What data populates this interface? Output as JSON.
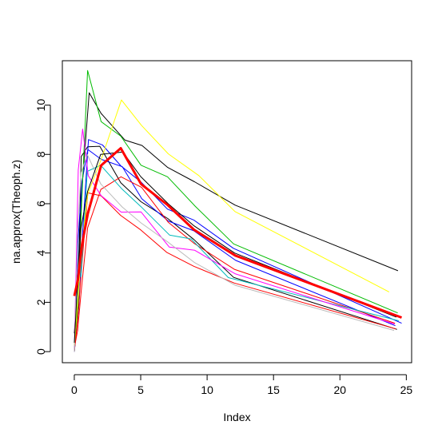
{
  "chart_data": {
    "type": "line",
    "xlabel": "Index",
    "ylabel": "na.approx(Theoph.z)",
    "xlim": [
      -0.9,
      25.4
    ],
    "ylim": [
      -0.45,
      11.8
    ],
    "xticks": [
      0,
      5,
      10,
      15,
      20,
      25
    ],
    "yticks": [
      0,
      2,
      4,
      6,
      8,
      10
    ],
    "grid": false,
    "legend": "none",
    "series": [
      {
        "color": "#000000",
        "width": 1,
        "x": [
          0,
          0.25,
          0.57,
          1.12,
          2.02,
          3.82,
          5.1,
          7.03,
          9.05,
          12.12,
          24.37
        ],
        "y": [
          0.74,
          2.84,
          6.57,
          10.5,
          9.66,
          8.58,
          8.36,
          7.47,
          6.89,
          5.94,
          3.28
        ]
      },
      {
        "color": "#000000",
        "width": 1,
        "x": [
          0,
          0.27,
          0.52,
          1,
          1.92,
          3.5,
          5.02,
          7.03,
          9,
          12,
          24.3
        ],
        "y": [
          0,
          1.72,
          7.91,
          8.31,
          8.33,
          6.85,
          6.08,
          5.4,
          4.55,
          3.01,
          0.9
        ]
      },
      {
        "color": "#0000ff",
        "width": 1,
        "x": [
          0,
          0.27,
          0.58,
          1.02,
          2.02,
          3.62,
          5.08,
          7.07,
          9,
          12.15,
          24.17
        ],
        "y": [
          0,
          4.4,
          6.9,
          8.2,
          7.8,
          7.5,
          6.2,
          5.3,
          4.9,
          3.7,
          1.05
        ]
      },
      {
        "color": "#0000ff",
        "width": 1,
        "x": [
          0,
          0.35,
          0.6,
          1.07,
          2.13,
          3.5,
          5.02,
          7.02,
          9.02,
          11.98,
          24.65
        ],
        "y": [
          0,
          1.89,
          4.6,
          8.6,
          8.38,
          7.54,
          6.88,
          5.78,
          5.33,
          4.19,
          1.15
        ]
      },
      {
        "color": "#00bb00",
        "width": 1,
        "x": [
          0,
          0.3,
          0.52,
          1,
          2.02,
          3.5,
          5.02,
          7.02,
          9.1,
          12,
          24.35
        ],
        "y": [
          0,
          2.02,
          5.63,
          11.4,
          9.33,
          8.74,
          7.56,
          7.09,
          5.9,
          4.37,
          1.57
        ]
      },
      {
        "color": "#ff0000",
        "width": 1,
        "x": [
          0,
          0.25,
          0.5,
          1.02,
          2.02,
          3.48,
          5,
          6.98,
          9,
          12.05,
          24.22
        ],
        "y": [
          0,
          1.29,
          3.08,
          6.44,
          6.32,
          5.53,
          4.94,
          4.02,
          3.46,
          2.78,
          0.92
        ]
      },
      {
        "color": "#ff0000",
        "width": 1,
        "x": [
          0,
          0.25,
          0.5,
          1,
          2,
          3.52,
          5.07,
          7.07,
          9.03,
          12.05,
          24.15
        ],
        "y": [
          0.15,
          0.85,
          2.35,
          5.02,
          6.58,
          7.09,
          6.66,
          5.25,
          4.39,
          3.34,
          1.15
        ]
      },
      {
        "color": "#00bbbb",
        "width": 1,
        "x": [
          0,
          0.25,
          0.5,
          0.98,
          1.98,
          3.6,
          5.02,
          7.17,
          8.8,
          11.6,
          24.43
        ],
        "y": [
          0,
          3.05,
          3.05,
          7.31,
          7.56,
          6.59,
          5.88,
          4.73,
          4.57,
          3,
          1.25
        ]
      },
      {
        "color": "#ff00ff",
        "width": 1,
        "x": [
          0,
          0.3,
          0.63,
          1.05,
          2.02,
          3.53,
          5.02,
          7.15,
          9.07,
          12.1,
          24.12
        ],
        "y": [
          0,
          7.37,
          9.03,
          7.14,
          6.33,
          5.66,
          5.67,
          4.24,
          4.11,
          3.16,
          1.12
        ]
      },
      {
        "color": "#ffff00",
        "width": 1,
        "x": [
          0,
          0.37,
          0.77,
          1.02,
          2.05,
          3.55,
          5.05,
          7.08,
          9.38,
          12.1,
          23.7
        ],
        "y": [
          0.24,
          2.89,
          5.22,
          6.41,
          7.83,
          10.21,
          9.18,
          8.02,
          7.14,
          5.68,
          2.42
        ]
      },
      {
        "color": "#bbbbbb",
        "width": 1,
        "x": [
          0,
          0.25,
          0.5,
          0.98,
          1.98,
          3.6,
          5.02,
          7.03,
          9.03,
          12.12,
          24.08
        ],
        "y": [
          0,
          4.86,
          7.24,
          8.0,
          6.81,
          5.87,
          5.22,
          4.45,
          3.62,
          2.69,
          0.86
        ]
      },
      {
        "color": "#000000",
        "width": 1,
        "x": [
          0,
          0.25,
          0.5,
          1,
          1.98,
          3.65,
          5,
          7.07,
          9.02,
          12.07,
          24.25
        ],
        "y": [
          0.36,
          2.83,
          5.0,
          6.5,
          8.0,
          8.1,
          7.1,
          6.0,
          5.1,
          4.0,
          1.4
        ]
      },
      {
        "color": "#ff0000",
        "width": 3,
        "x": [
          0,
          0.27,
          0.58,
          1.02,
          2.02,
          3.5,
          5.02,
          7.02,
          9.0,
          12.12,
          24.65
        ],
        "y": [
          2.26,
          2.9,
          4.35,
          5.6,
          7.55,
          8.25,
          6.8,
          5.95,
          4.95,
          3.9,
          1.38
        ]
      }
    ]
  }
}
